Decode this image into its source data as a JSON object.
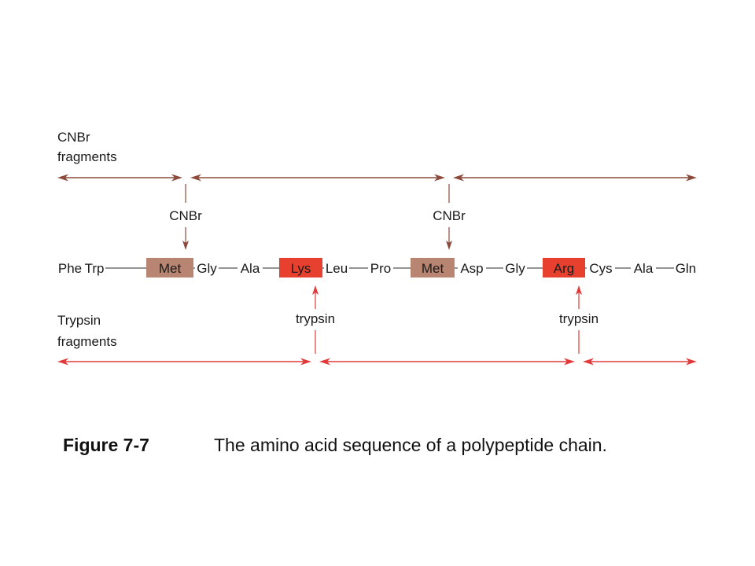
{
  "cnbr_heading": [
    "CNBr",
    "fragments"
  ],
  "trypsin_heading": [
    "Trypsin",
    "fragments"
  ],
  "cnbr_site_label": "CNBr",
  "trypsin_site_label": "trypsin",
  "sequence": [
    {
      "name": "Phe",
      "mark": "none"
    },
    {
      "name": "Trp",
      "mark": "none"
    },
    {
      "name": "Met",
      "mark": "cnbr"
    },
    {
      "name": "Gly",
      "mark": "none"
    },
    {
      "name": "Ala",
      "mark": "none"
    },
    {
      "name": "Lys",
      "mark": "trypsin"
    },
    {
      "name": "Leu",
      "mark": "none"
    },
    {
      "name": "Pro",
      "mark": "none"
    },
    {
      "name": "Met",
      "mark": "cnbr"
    },
    {
      "name": "Asp",
      "mark": "none"
    },
    {
      "name": "Gly",
      "mark": "none"
    },
    {
      "name": "Arg",
      "mark": "trypsin"
    },
    {
      "name": "Cys",
      "mark": "none"
    },
    {
      "name": "Ala",
      "mark": "none"
    },
    {
      "name": "Gln",
      "mark": "none"
    }
  ],
  "colors": {
    "cnbr": "#8b4a3c",
    "cnbr_highlight": "#b78572",
    "trypsin": "#e23a3a",
    "trypsin_highlight": "#e8402e",
    "bond": "#555555"
  },
  "caption": {
    "label": "Figure 7-7",
    "text": "The amino acid sequence of a polypeptide chain."
  }
}
